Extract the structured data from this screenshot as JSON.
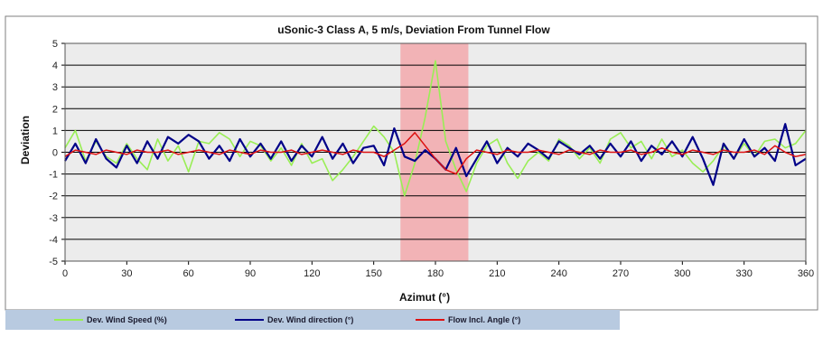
{
  "chart_data": {
    "type": "line",
    "title": "uSonic-3 Class A, 5 m/s, Deviation From Tunnel Flow",
    "xlabel": "Azimut (°)",
    "ylabel": "Deviation",
    "xlim": [
      0,
      360
    ],
    "ylim": [
      -5,
      5
    ],
    "x_ticks": [
      0,
      30,
      60,
      90,
      120,
      150,
      180,
      210,
      240,
      270,
      300,
      330,
      360
    ],
    "y_ticks": [
      5,
      4,
      3,
      2,
      1,
      0,
      -1,
      -2,
      -3,
      -4,
      -5
    ],
    "grid": true,
    "legend_position": "bottom-left",
    "highlight_band": {
      "x_start": 163,
      "x_end": 196,
      "color": "#f2b3b6"
    },
    "colors": {
      "plot_background": "#ececec",
      "speed": "#99ee55",
      "direction": "#000088",
      "angle": "#dd1111",
      "legend_bg": "#b8cae0"
    },
    "series": [
      {
        "name": "Dev. Wind Speed (%)",
        "color": "#99ee55",
        "x": [
          0,
          5,
          10,
          15,
          20,
          25,
          30,
          35,
          40,
          45,
          50,
          55,
          60,
          65,
          70,
          75,
          80,
          85,
          90,
          95,
          100,
          105,
          110,
          115,
          120,
          125,
          130,
          135,
          140,
          145,
          150,
          155,
          160,
          165,
          170,
          175,
          180,
          185,
          190,
          195,
          200,
          205,
          210,
          215,
          220,
          225,
          230,
          235,
          240,
          245,
          250,
          255,
          260,
          265,
          270,
          275,
          280,
          285,
          290,
          295,
          300,
          305,
          310,
          315,
          320,
          325,
          330,
          335,
          340,
          345,
          350,
          355,
          360
        ],
        "y": [
          0.2,
          1.0,
          -0.4,
          0.5,
          -0.2,
          -0.5,
          0.4,
          -0.3,
          -0.8,
          0.6,
          -0.4,
          0.3,
          -0.9,
          0.5,
          0.4,
          0.9,
          0.6,
          -0.2,
          0.5,
          0.3,
          -0.4,
          0.2,
          -0.6,
          0.4,
          -0.5,
          -0.3,
          -1.3,
          -0.8,
          -0.2,
          0.5,
          1.2,
          0.7,
          0.0,
          -2.0,
          -0.5,
          1.6,
          4.2,
          0.5,
          -0.8,
          -1.8,
          -0.5,
          0.3,
          0.6,
          -0.5,
          -1.2,
          -0.4,
          0.0,
          -0.4,
          0.6,
          0.3,
          -0.3,
          0.2,
          -0.5,
          0.6,
          0.9,
          0.2,
          0.5,
          -0.3,
          0.6,
          -0.2,
          0.1,
          -0.5,
          -0.9,
          -0.4,
          0.3,
          -0.3,
          0.4,
          -0.2,
          0.5,
          0.6,
          0.2,
          0.4,
          1.0
        ]
      },
      {
        "name": "Dev. Wind direction (°)",
        "color": "#000088",
        "x": [
          0,
          5,
          10,
          15,
          20,
          25,
          30,
          35,
          40,
          45,
          50,
          55,
          60,
          65,
          70,
          75,
          80,
          85,
          90,
          95,
          100,
          105,
          110,
          115,
          120,
          125,
          130,
          135,
          140,
          145,
          150,
          155,
          160,
          165,
          170,
          175,
          180,
          185,
          190,
          195,
          200,
          205,
          210,
          215,
          220,
          225,
          230,
          235,
          240,
          245,
          250,
          255,
          260,
          265,
          270,
          275,
          280,
          285,
          290,
          295,
          300,
          305,
          310,
          315,
          320,
          325,
          330,
          335,
          340,
          345,
          350,
          355,
          360
        ],
        "y": [
          -0.4,
          0.4,
          -0.5,
          0.6,
          -0.3,
          -0.7,
          0.3,
          -0.5,
          0.5,
          -0.3,
          0.7,
          0.4,
          0.8,
          0.5,
          -0.3,
          0.3,
          -0.4,
          0.6,
          -0.2,
          0.4,
          -0.3,
          0.5,
          -0.4,
          0.3,
          -0.2,
          0.7,
          -0.3,
          0.4,
          -0.5,
          0.2,
          0.3,
          -0.6,
          1.1,
          -0.2,
          -0.4,
          0.1,
          -0.3,
          -0.8,
          0.2,
          -1.1,
          -0.3,
          0.5,
          -0.5,
          0.2,
          -0.2,
          0.4,
          0.1,
          -0.3,
          0.5,
          0.2,
          -0.1,
          0.3,
          -0.3,
          0.4,
          -0.2,
          0.5,
          -0.4,
          0.3,
          -0.1,
          0.5,
          -0.2,
          0.7,
          -0.3,
          -1.5,
          0.4,
          -0.3,
          0.6,
          -0.2,
          0.2,
          -0.4,
          1.3,
          -0.6,
          -0.3
        ]
      },
      {
        "name": "Flow Incl. Angle (°)",
        "color": "#dd1111",
        "x": [
          0,
          5,
          10,
          15,
          20,
          25,
          30,
          35,
          40,
          45,
          50,
          55,
          60,
          65,
          70,
          75,
          80,
          85,
          90,
          95,
          100,
          105,
          110,
          115,
          120,
          125,
          130,
          135,
          140,
          145,
          150,
          155,
          160,
          165,
          170,
          175,
          180,
          185,
          190,
          195,
          200,
          205,
          210,
          215,
          220,
          225,
          230,
          235,
          240,
          245,
          250,
          255,
          260,
          265,
          270,
          275,
          280,
          285,
          290,
          295,
          300,
          305,
          310,
          315,
          320,
          325,
          330,
          335,
          340,
          345,
          350,
          355,
          360
        ],
        "y": [
          -0.2,
          0.1,
          0.0,
          -0.1,
          0.1,
          0.0,
          -0.1,
          0.1,
          0.0,
          0.0,
          0.1,
          -0.1,
          0.0,
          0.1,
          0.0,
          -0.1,
          0.1,
          0.0,
          -0.1,
          0.1,
          0.0,
          0.0,
          0.1,
          -0.1,
          0.0,
          0.1,
          0.0,
          -0.1,
          0.1,
          0.0,
          0.0,
          -0.2,
          0.1,
          0.4,
          0.9,
          0.3,
          -0.3,
          -0.8,
          -1.0,
          -0.3,
          0.1,
          0.0,
          -0.1,
          0.1,
          0.0,
          0.0,
          0.1,
          0.0,
          -0.1,
          0.1,
          0.0,
          -0.1,
          0.1,
          0.0,
          0.0,
          0.1,
          -0.1,
          0.0,
          0.2,
          0.0,
          -0.1,
          0.1,
          0.0,
          -0.1,
          0.1,
          0.0,
          0.0,
          0.1,
          -0.1,
          0.3,
          0.0,
          -0.2,
          -0.1
        ]
      }
    ]
  }
}
